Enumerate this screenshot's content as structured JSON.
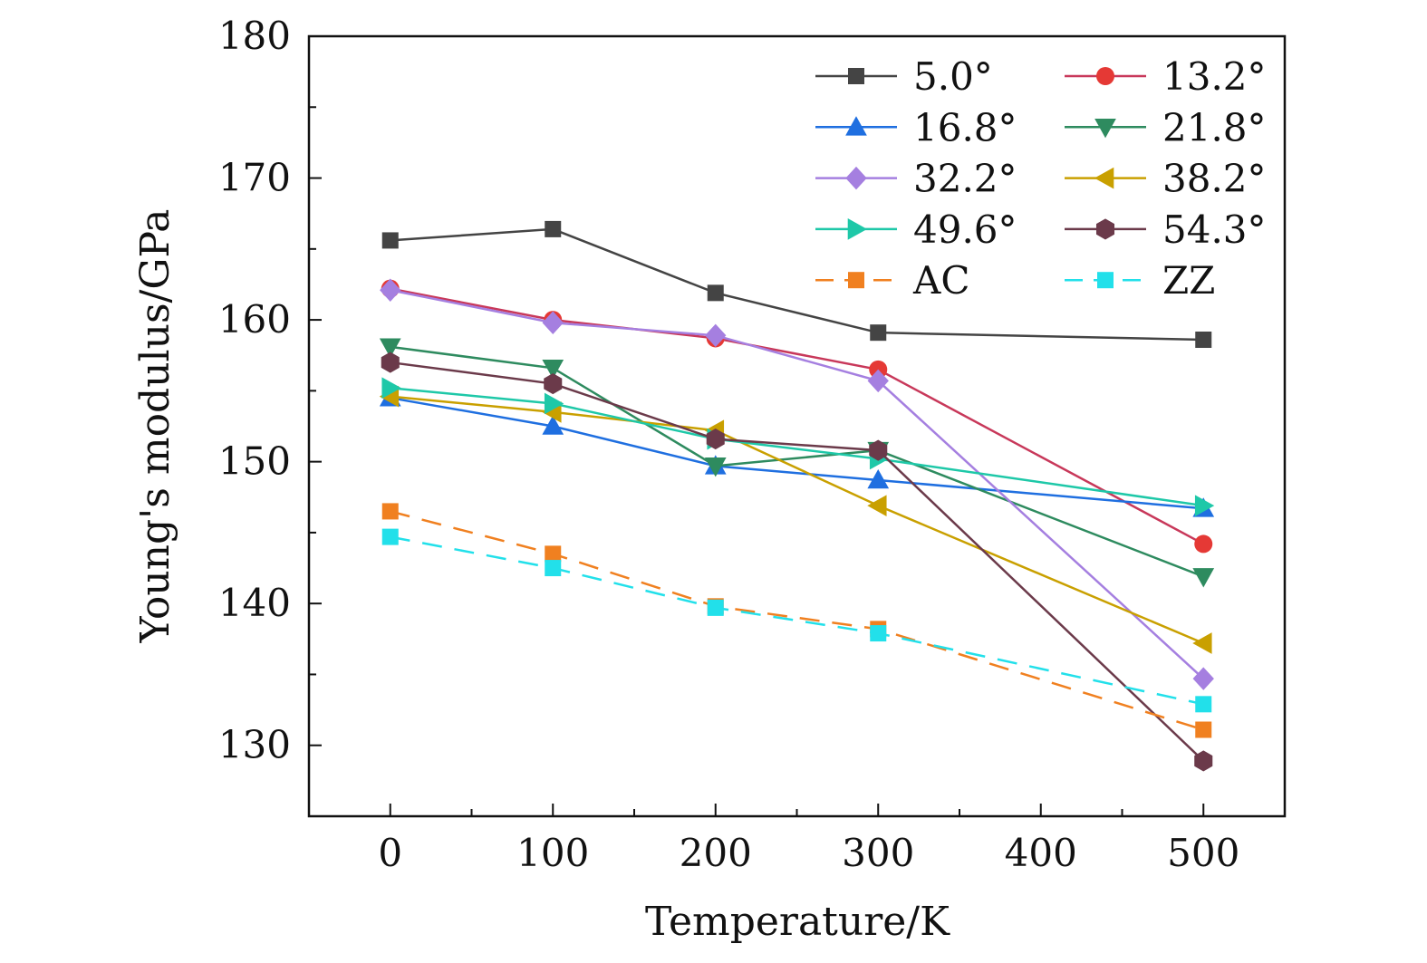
{
  "chart_data": {
    "type": "line",
    "xlabel": "Temperature/K",
    "ylabel": "Young's modulus/GPa",
    "xlim": [
      -50,
      550
    ],
    "ylim": [
      125,
      180
    ],
    "xticks": [
      0,
      100,
      200,
      300,
      400,
      500
    ],
    "yticks": [
      130,
      140,
      150,
      160,
      170,
      180
    ],
    "grid": false,
    "legend_position": "top-right",
    "x": [
      0,
      100,
      200,
      300,
      500
    ],
    "series": [
      {
        "name": "5.0°",
        "color": "#444444",
        "marker": "square",
        "dash": false,
        "values": [
          165.6,
          166.4,
          161.9,
          159.1,
          158.6
        ]
      },
      {
        "name": "13.2°",
        "color": "#e53935",
        "line_color": "#c8385a",
        "marker": "circle",
        "dash": false,
        "values": [
          162.2,
          160.0,
          158.7,
          156.5,
          144.2
        ]
      },
      {
        "name": "16.8°",
        "color": "#1f6fe0",
        "marker": "triangle-up",
        "dash": false,
        "values": [
          154.5,
          152.5,
          149.7,
          148.7,
          146.7
        ]
      },
      {
        "name": "21.8°",
        "color": "#2e8b5f",
        "marker": "triangle-down",
        "dash": false,
        "values": [
          158.1,
          156.6,
          149.7,
          150.8,
          141.9
        ]
      },
      {
        "name": "32.2°",
        "color": "#a57fe0",
        "marker": "diamond",
        "dash": false,
        "values": [
          162.1,
          159.8,
          158.9,
          155.7,
          134.7
        ]
      },
      {
        "name": "38.2°",
        "color": "#c9a000",
        "marker": "triangle-left",
        "dash": false,
        "values": [
          154.6,
          153.5,
          152.2,
          146.9,
          137.2
        ]
      },
      {
        "name": "49.6°",
        "color": "#1ec8a8",
        "marker": "triangle-right",
        "dash": false,
        "values": [
          155.2,
          154.1,
          151.6,
          150.2,
          146.9
        ]
      },
      {
        "name": "54.3°",
        "color": "#6b3a4a",
        "marker": "hexagon",
        "dash": false,
        "values": [
          157.0,
          155.5,
          151.6,
          150.8,
          128.9
        ]
      },
      {
        "name": "AC",
        "color": "#f08020",
        "marker": "square",
        "dash": true,
        "values": [
          146.5,
          143.5,
          139.8,
          138.2,
          131.1
        ]
      },
      {
        "name": "ZZ",
        "color": "#22e0ea",
        "marker": "square",
        "dash": true,
        "values": [
          144.7,
          142.5,
          139.7,
          137.9,
          132.9
        ]
      }
    ]
  }
}
